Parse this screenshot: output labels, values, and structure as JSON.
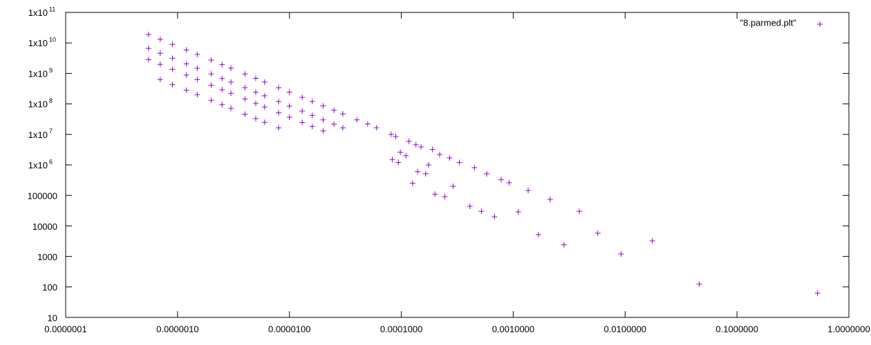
{
  "chart_data": {
    "type": "scatter",
    "xscale": "log",
    "yscale": "log",
    "legend": "top-right",
    "xlim": [
      1e-07,
      1
    ],
    "ylim": [
      10,
      100000000000.0
    ],
    "xticks": [
      {
        "value": 1e-07,
        "label": "0.0000001"
      },
      {
        "value": 1e-06,
        "label": "0.0000010"
      },
      {
        "value": 1e-05,
        "label": "0.0000100"
      },
      {
        "value": 0.0001,
        "label": "0.0001000"
      },
      {
        "value": 0.001,
        "label": "0.0010000"
      },
      {
        "value": 0.01,
        "label": "0.0100000"
      },
      {
        "value": 0.1,
        "label": "0.1000000"
      },
      {
        "value": 1,
        "label": "1.0000000"
      }
    ],
    "yticks": [
      10,
      100,
      1000,
      10000,
      100000,
      {
        "value": 1000000.0,
        "label": "1x10",
        "sup": "6"
      },
      {
        "value": 10000000.0,
        "label": "1x10",
        "sup": "7"
      },
      {
        "value": 100000000.0,
        "label": "1x10",
        "sup": "8"
      },
      {
        "value": 1000000000.0,
        "label": "1x10",
        "sup": "9"
      },
      {
        "value": 10000000000.0,
        "label": "1x10",
        "sup": "10"
      },
      {
        "value": 100000000000.0,
        "label": "1x10",
        "sup": "11"
      }
    ],
    "series": [
      {
        "name": "\"8.parmed.plt\"",
        "color": "#9400d3",
        "x": [
          5.5e-07,
          7e-07,
          9e-07,
          1.2e-06,
          1.5e-06,
          2e-06,
          2.5e-06,
          3e-06,
          4e-06,
          5e-06,
          6e-06,
          8e-06,
          1e-05,
          1.3e-05,
          1.6e-05,
          2e-05,
          2.5e-05,
          3e-05,
          4e-05,
          5e-05,
          6e-05,
          5.5e-07,
          7e-07,
          9e-07,
          1.2e-06,
          1.5e-06,
          2e-06,
          2.5e-06,
          3e-06,
          4e-06,
          5e-06,
          6e-06,
          8e-06,
          1e-05,
          1.3e-05,
          1.6e-05,
          2e-05,
          2.5e-05,
          3e-05,
          5.5e-07,
          7e-07,
          9e-07,
          1.2e-06,
          1.5e-06,
          2e-06,
          2.5e-06,
          3e-06,
          4e-06,
          5e-06,
          6e-06,
          8e-06,
          1e-05,
          1.3e-05,
          1.6e-05,
          2e-05,
          7e-07,
          9e-07,
          1.2e-06,
          1.5e-06,
          2e-06,
          2.5e-06,
          3e-06,
          4e-06,
          5e-06,
          6e-06,
          8e-06,
          8.1e-05,
          8.3e-05,
          8.9e-05,
          9.4e-05,
          9.8e-05,
          0.00011,
          0.000117,
          0.000126,
          0.000135,
          0.00014,
          0.00015,
          0.000165,
          0.000175,
          0.00019,
          0.0002,
          0.00022,
          0.000245,
          0.00027,
          0.00029,
          0.00033,
          0.00041,
          0.00045,
          0.00052,
          0.00058,
          0.00068,
          0.00078,
          0.00092,
          0.00111,
          0.00136,
          0.00168,
          0.00214,
          0.00284,
          0.0039,
          0.0057,
          0.0092,
          0.0175,
          0.046,
          0.525
        ],
        "values": [
          18900000000.0,
          13100000000.0,
          9000000000.0,
          5860000000.0,
          4190000000.0,
          2730000000.0,
          1950000000.0,
          1480000000.0,
          960000000.0,
          690000000.0,
          520000000.0,
          340000000.0,
          243000000.0,
          164000000.0,
          120000000.0,
          86000000.0,
          62000000.0,
          47000000.0,
          30000000.0,
          22000000.0,
          16600000.0,
          6600000000.0,
          4600000000.0,
          3160000000.0,
          2050000000.0,
          1470000000.0,
          960000000.0,
          680000000.0,
          520000000.0,
          340000000.0,
          241000000.0,
          184000000.0,
          119000000.0,
          85000000.0,
          58000000.0,
          42000000.0,
          30000000.0,
          21600000.0,
          16400000.0,
          2840000000.0,
          1980000000.0,
          1360000000.0,
          880000000.0,
          630000000.0,
          410000000.0,
          293000000.0,
          223000000.0,
          145000000.0,
          104000000.0,
          79000000.0,
          51000000.0,
          36700000.0,
          24700000.0,
          18100000.0,
          13000000.0,
          630000000.0,
          430000000.0,
          282000000.0,
          201000000.0,
          131000000.0,
          94000000.0,
          71000000.0,
          46000000.0,
          33000000.0,
          25000000.0,
          16400000.0,
          10000000.0,
          1500000.0,
          8500000.0,
          1200000.0,
          2600000.0,
          2000000.0,
          5900000.0,
          250000.0,
          4600000.0,
          600000.0,
          3900000.0,
          510000.0,
          1000000.0,
          3200000.0,
          110000.0,
          2200000.0,
          91000,
          1700000.0,
          200000.0,
          1200000.0,
          44000,
          810000.0,
          30000,
          510000.0,
          20000,
          330000.0,
          260000.0,
          29000,
          145000.0,
          5200,
          74000,
          2400,
          30000,
          5750,
          1200,
          3250,
          123,
          62
        ]
      }
    ]
  }
}
